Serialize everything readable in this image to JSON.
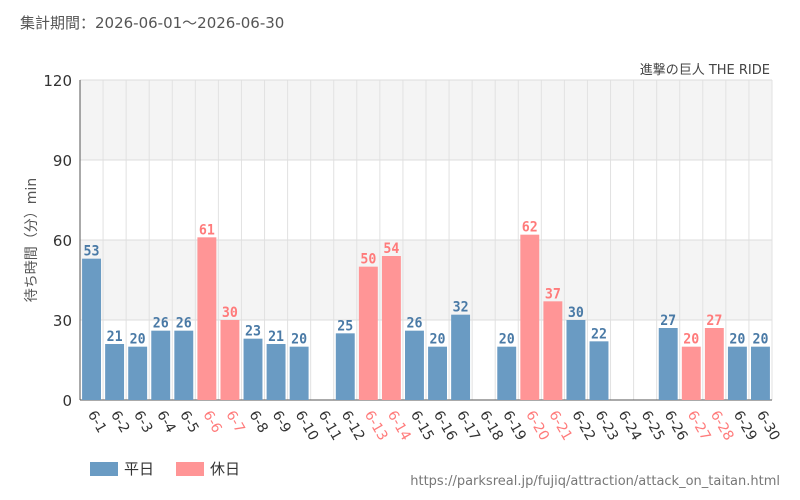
{
  "header": {
    "period_label": "集計期間：2026-06-01～2026-06-30"
  },
  "footer": {
    "source_url": "https://parksreal.jp/fujiq/attraction/attack_on_taitan.html"
  },
  "colors": {
    "weekday": "#6a9bc3",
    "holiday": "#ff9596",
    "weekday_text": "#4a7aa6",
    "holiday_text": "#ff7b7b"
  },
  "chart_data": {
    "type": "bar",
    "title": "進撃の巨人 THE RIDE",
    "ylabel": "待ち時間（分）min",
    "ylim": [
      0,
      120
    ],
    "yticks": [
      0,
      30,
      60,
      90,
      120
    ],
    "grid": true,
    "legend_position": "bottom-left",
    "legend": [
      {
        "key": "weekday",
        "label": "平日"
      },
      {
        "key": "holiday",
        "label": "休日"
      }
    ],
    "categories": [
      "6-1",
      "6-2",
      "6-3",
      "6-4",
      "6-5",
      "6-6",
      "6-7",
      "6-8",
      "6-9",
      "6-10",
      "6-11",
      "6-12",
      "6-13",
      "6-14",
      "6-15",
      "6-16",
      "6-17",
      "6-18",
      "6-19",
      "6-20",
      "6-21",
      "6-22",
      "6-23",
      "6-24",
      "6-25",
      "6-26",
      "6-27",
      "6-28",
      "6-29",
      "6-30"
    ],
    "values": [
      53,
      21,
      20,
      26,
      26,
      61,
      30,
      23,
      21,
      20,
      null,
      25,
      50,
      54,
      26,
      20,
      32,
      null,
      20,
      62,
      37,
      30,
      22,
      null,
      null,
      27,
      20,
      27,
      20,
      20
    ],
    "day_type": [
      "weekday",
      "weekday",
      "weekday",
      "weekday",
      "weekday",
      "holiday",
      "holiday",
      "weekday",
      "weekday",
      "weekday",
      "weekday",
      "weekday",
      "holiday",
      "holiday",
      "weekday",
      "weekday",
      "weekday",
      "weekday",
      "weekday",
      "holiday",
      "holiday",
      "weekday",
      "weekday",
      "weekday",
      "weekday",
      "weekday",
      "holiday",
      "holiday",
      "weekday",
      "weekday"
    ]
  }
}
